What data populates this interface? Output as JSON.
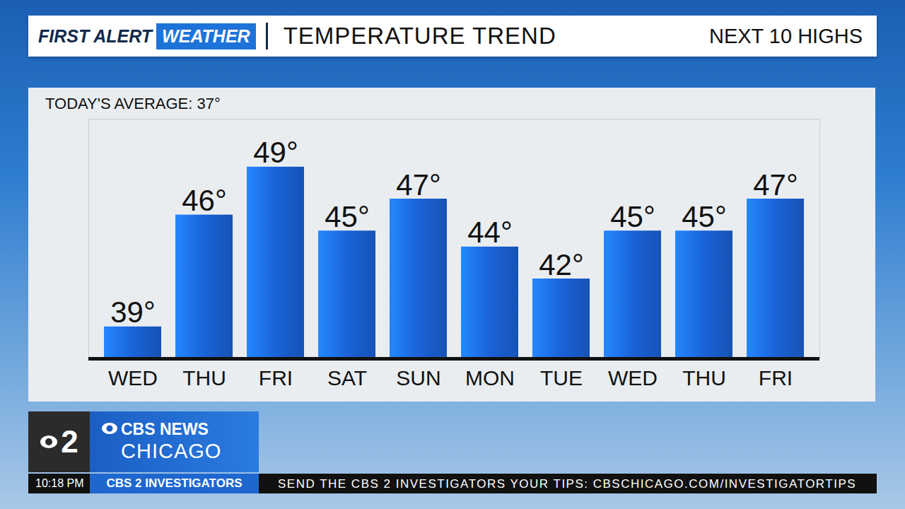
{
  "chart_data": {
    "type": "bar",
    "title": "TEMPERATURE TREND",
    "subtitle": "NEXT 10 HIGHS",
    "annotations": [
      "TODAY'S AVERAGE: 37°"
    ],
    "categories": [
      "WED",
      "THU",
      "FRI",
      "SAT",
      "SUN",
      "MON",
      "TUE",
      "WED",
      "THU",
      "FRI"
    ],
    "values": [
      39,
      46,
      49,
      45,
      47,
      44,
      42,
      45,
      45,
      47
    ],
    "value_labels": [
      "39°",
      "46°",
      "49°",
      "45°",
      "47°",
      "44°",
      "42°",
      "45°",
      "45°",
      "47°"
    ],
    "color": "#1a63d8",
    "ylim": [
      37,
      52
    ],
    "data_labels": true,
    "tick_labels": "x"
  },
  "header": {
    "brand": "FIRST ALERT",
    "brand_tag": "WEATHER"
  },
  "logo": {
    "channel": "2",
    "network": "CBS NEWS",
    "city": "CHICAGO"
  },
  "ticker": {
    "time": "10:18 PM",
    "segment": "CBS 2 INVESTIGATORS",
    "text": "SEND THE CBS 2 INVESTIGATORS YOUR TIPS: CBSCHICAGO.COM/INVESTIGATORTIPS"
  }
}
